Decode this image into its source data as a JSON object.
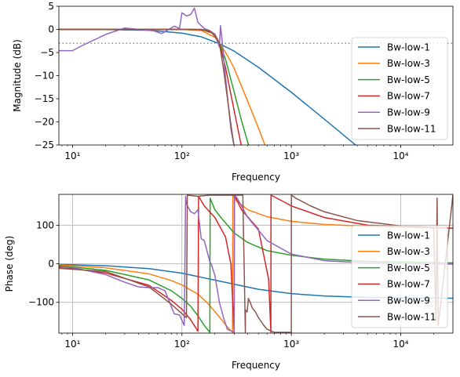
{
  "chart_data": [
    {
      "type": "line",
      "xlabel": "Frequency",
      "ylabel": "Magnitude (dB)",
      "x_scale": "log",
      "xlim": [
        7.5,
        30000
      ],
      "ylim": [
        -25,
        5
      ],
      "yticks": [
        5,
        0,
        -5,
        -10,
        -15,
        -20,
        -25
      ],
      "xticks": [
        10,
        100,
        1000,
        10000
      ],
      "xtick_labels": [
        "10¹",
        "10²",
        "10³",
        "10⁴"
      ],
      "grid": false,
      "legend_position": "right",
      "reference_line": {
        "y": -3,
        "style": "dotted",
        "color": "#808080"
      },
      "series": [
        {
          "name": "Bw-low-1",
          "color": "#1f77b4",
          "x": [
            7.5,
            20,
            50,
            100,
            150,
            220,
            300,
            500,
            1000,
            2000,
            4000,
            30000
          ],
          "y": [
            0,
            -0.04,
            -0.2,
            -0.8,
            -1.6,
            -3.1,
            -4.7,
            -8.2,
            -13.6,
            -19.4,
            -25.3,
            -42
          ]
        },
        {
          "name": "Bw-low-3",
          "color": "#ff7f0e",
          "x": [
            7.5,
            50,
            100,
            150,
            200,
            220,
            260,
            300,
            400,
            500,
            580
          ],
          "y": [
            0,
            0,
            -0.02,
            -0.25,
            -1.7,
            -3.0,
            -5.6,
            -8.4,
            -15.6,
            -21.3,
            -25.3
          ]
        },
        {
          "name": "Bw-low-5",
          "color": "#2ca02c",
          "x": [
            7.5,
            100,
            150,
            190,
            220,
            250,
            300,
            350,
            410
          ],
          "y": [
            0,
            0,
            -0.05,
            -0.8,
            -3.0,
            -6.4,
            -13.5,
            -19.7,
            -25.3
          ]
        },
        {
          "name": "Bw-low-7",
          "color": "#d62728",
          "x": [
            7.5,
            120,
            160,
            200,
            220,
            250,
            280,
            320,
            350
          ],
          "y": [
            0,
            0,
            -0.1,
            -1.0,
            -3.0,
            -8.2,
            -14.0,
            -20.8,
            -25.3
          ]
        },
        {
          "name": "Bw-low-9",
          "color": "#9467bd",
          "x": [
            7.5,
            10,
            12,
            20,
            30,
            40,
            55,
            65,
            70,
            85,
            95,
            100,
            110,
            120,
            130,
            140,
            160,
            180,
            200,
            220,
            225,
            232,
            240,
            250,
            265,
            280,
            300
          ],
          "y": [
            -4.6,
            -4.6,
            -3.6,
            -1.1,
            0.3,
            0,
            -0.3,
            -0.9,
            -0.5,
            0.7,
            0.2,
            3.6,
            2.9,
            3.2,
            4.6,
            1.5,
            0.2,
            -0.3,
            -1.0,
            -3.8,
            0.8,
            -2.0,
            -6.0,
            -10.2,
            -16.2,
            -21.5,
            -25.3
          ]
        },
        {
          "name": "Bw-low-11",
          "color": "#8c564b",
          "x": [
            7.5,
            150,
            180,
            200,
            220,
            240,
            260,
            280,
            300
          ],
          "y": [
            0,
            0,
            -0.3,
            -1.5,
            -3.0,
            -8.6,
            -14.8,
            -20.5,
            -25.3
          ]
        }
      ]
    },
    {
      "type": "line",
      "xlabel": "Frequency",
      "ylabel": "Phase (deg)",
      "x_scale": "log",
      "xlim": [
        7.5,
        30000
      ],
      "ylim": [
        -180,
        180
      ],
      "yticks": [
        100,
        0,
        -100
      ],
      "xticks": [
        10,
        100,
        1000,
        10000
      ],
      "xtick_labels": [
        "10¹",
        "10²",
        "10³",
        "10⁴"
      ],
      "grid": true,
      "legend_position": "right",
      "series": [
        {
          "name": "Bw-low-1",
          "color": "#1f77b4",
          "x": [
            7.5,
            10,
            20,
            50,
            100,
            220,
            500,
            1000,
            2000,
            5000,
            30000
          ],
          "y": [
            -2,
            -2.6,
            -5.2,
            -12.8,
            -24.4,
            -45,
            -66.3,
            -77.6,
            -83.7,
            -87.5,
            -89.6
          ]
        },
        {
          "name": "Bw-low-3",
          "color": "#ff7f0e",
          "x": [
            7.5,
            20,
            50,
            80,
            100,
            140,
            170,
            200,
            230,
            260,
            290,
            292,
            310,
            400,
            600,
            1000,
            2000,
            5000,
            30000
          ],
          "y": [
            -3,
            -10.4,
            -26.3,
            -43.6,
            -55,
            -79,
            -101,
            -124,
            -145,
            -164,
            -178,
            179,
            165,
            140,
            122,
            110,
            102,
            97,
            92
          ]
        },
        {
          "name": "Bw-low-5",
          "color": "#2ca02c",
          "x": [
            7.5,
            20,
            50,
            80,
            100,
            120,
            140,
            160,
            180,
            181,
            200,
            230,
            300,
            400,
            600,
            1000,
            2000,
            5000,
            30000
          ],
          "y": [
            -5,
            -17,
            -42,
            -70,
            -90,
            -110,
            -135,
            -160,
            -178,
            170,
            140,
            118,
            80,
            55,
            34,
            22,
            12,
            6,
            2
          ]
        },
        {
          "name": "Bw-low-7",
          "color": "#d62728",
          "x": [
            7.5,
            20,
            50,
            80,
            100,
            120,
            140,
            142,
            160,
            200,
            250,
            280,
            300,
            302,
            350,
            500,
            620,
            650,
            652,
            800,
            1000,
            2000,
            5000,
            30000
          ],
          "y": [
            -8,
            -24,
            -56,
            -95,
            -118,
            -145,
            -175,
            175,
            150,
            120,
            70,
            0,
            -178,
            178,
            140,
            90,
            -40,
            -178,
            178,
            165,
            150,
            120,
            100,
            92
          ]
        },
        {
          "name": "Bw-low-9",
          "color": "#9467bd",
          "x": [
            7.5,
            10,
            20,
            30,
            40,
            50,
            60,
            70,
            85,
            95,
            105,
            108,
            110,
            120,
            130,
            140,
            150,
            160,
            180,
            185,
            200,
            220,
            240,
            260,
            300,
            302,
            320,
            400,
            600,
            1000,
            2000,
            5000,
            30000
          ],
          "y": [
            -10,
            -10,
            -28,
            -48,
            -60,
            -62,
            -62,
            -70,
            -130,
            -133,
            -160,
            175,
            155,
            135,
            130,
            140,
            65,
            60,
            5,
            0,
            -30,
            -100,
            -140,
            -170,
            -178,
            178,
            170,
            120,
            60,
            25,
            8,
            2,
            -1
          ]
        },
        {
          "name": "Bw-low-11",
          "color": "#8c564b",
          "x": [
            7.5,
            20,
            50,
            80,
            110,
            112,
            140,
            180,
            250,
            300,
            330,
            360,
            380,
            381,
            395,
            405,
            420,
            440,
            470,
            500,
            530,
            560,
            600,
            700,
            800,
            900,
            960,
            1000,
            1001,
            1100,
            1500,
            2000,
            4000,
            10000,
            20000,
            21000,
            21500,
            22000,
            30000
          ],
          "y": [
            -12,
            -20,
            -60,
            -105,
            -140,
            178,
            175,
            178,
            178,
            178,
            178,
            178,
            -178,
            -120,
            -125,
            -90,
            -100,
            -115,
            -125,
            -140,
            -150,
            -160,
            -170,
            -178,
            -178,
            -178,
            -178,
            -178,
            178,
            170,
            150,
            135,
            112,
            98,
            94,
            -150,
            170,
            -160,
            178
          ]
        }
      ]
    }
  ]
}
